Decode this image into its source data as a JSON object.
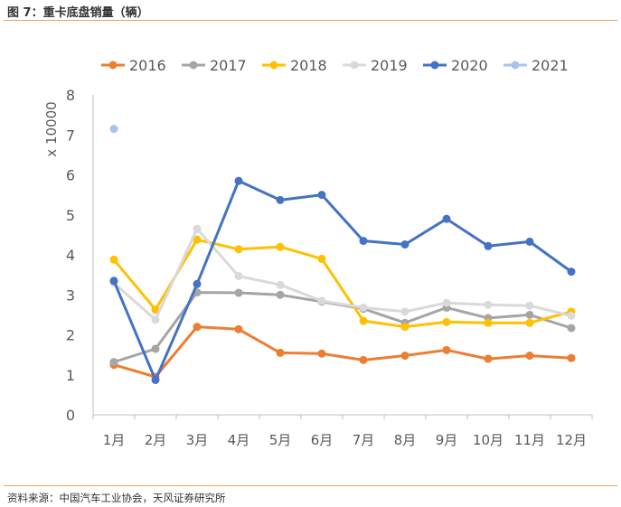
{
  "page": {
    "title": "图 7：重卡底盘销量（辆）",
    "source": "资料来源：中国汽车工业协会，天风证券研究所"
  },
  "chart_data": {
    "type": "line",
    "title": "重卡底盘销量（辆）",
    "xlabel": "",
    "ylabel": "x 10000",
    "ylim": [
      0,
      8
    ],
    "yticks": [
      "0",
      "1",
      "2",
      "3",
      "4",
      "5",
      "6",
      "7",
      "8"
    ],
    "grid": false,
    "legend_position": "top",
    "categories": [
      "1月",
      "2月",
      "3月",
      "4月",
      "5月",
      "6月",
      "7月",
      "8月",
      "9月",
      "10月",
      "11月",
      "12月"
    ],
    "series": [
      {
        "name": "2016",
        "color": "#ED7D31",
        "values": [
          1.25,
          0.95,
          2.2,
          2.14,
          1.55,
          1.53,
          1.37,
          1.48,
          1.62,
          1.4,
          1.48,
          1.42
        ]
      },
      {
        "name": "2017",
        "color": "#A5A5A5",
        "values": [
          1.32,
          1.65,
          3.06,
          3.05,
          3.0,
          2.83,
          2.65,
          2.3,
          2.68,
          2.42,
          2.5,
          2.17
        ]
      },
      {
        "name": "2018",
        "color": "#FFC000",
        "values": [
          3.88,
          2.63,
          4.38,
          4.14,
          4.2,
          3.9,
          2.35,
          2.2,
          2.32,
          2.3,
          2.3,
          2.58
        ]
      },
      {
        "name": "2019",
        "color": "#D9D9D9",
        "values": [
          3.3,
          2.38,
          4.65,
          3.47,
          3.25,
          2.85,
          2.68,
          2.58,
          2.8,
          2.75,
          2.73,
          2.48
        ]
      },
      {
        "name": "2020",
        "color": "#4472C4",
        "values": [
          3.35,
          0.87,
          3.27,
          5.85,
          5.37,
          5.5,
          4.35,
          4.26,
          4.9,
          4.22,
          4.33,
          3.58
        ]
      },
      {
        "name": "2021",
        "color": "#A9C4EB",
        "values": [
          7.15,
          null,
          null,
          null,
          null,
          null,
          null,
          null,
          null,
          null,
          null,
          null
        ]
      }
    ]
  }
}
